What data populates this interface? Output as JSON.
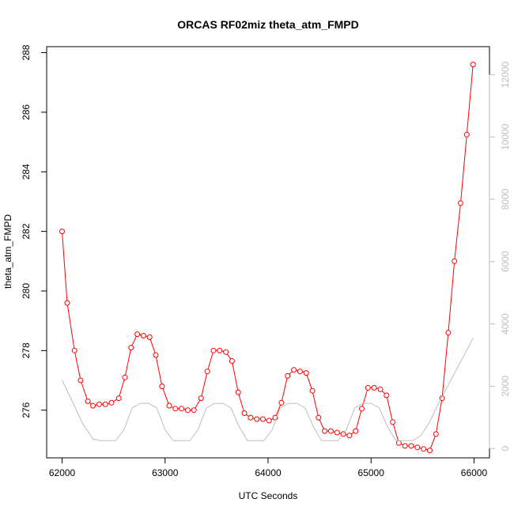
{
  "chart_data": {
    "type": "line",
    "title": "ORCAS RF02miz theta_atm_FMPD",
    "xlabel": "UTC Seconds",
    "ylabel": "theta_atm_FMPD",
    "xlim": [
      61850,
      66150
    ],
    "ylim": [
      274.4,
      288.2
    ],
    "y2lim": [
      -300,
      12900
    ],
    "xticks": [
      62000,
      63000,
      64000,
      65000,
      66000
    ],
    "yticks": [
      276,
      278,
      280,
      282,
      284,
      286,
      288
    ],
    "y2ticks": [
      0,
      2000,
      4000,
      6000,
      8000,
      10000,
      12000
    ],
    "colors": {
      "primary": "#ff0000",
      "secondary": "#bebebe"
    },
    "series": [
      {
        "axis": "left",
        "style": "line-points",
        "x": [
          62000,
          62050,
          62120,
          62180,
          62250,
          62300,
          62360,
          62420,
          62480,
          62550,
          62610,
          62670,
          62730,
          62790,
          62850,
          62910,
          62970,
          63040,
          63100,
          63160,
          63220,
          63280,
          63350,
          63410,
          63470,
          63530,
          63590,
          63650,
          63710,
          63770,
          63830,
          63890,
          63950,
          64010,
          64070,
          64130,
          64190,
          64250,
          64310,
          64370,
          64430,
          64490,
          64550,
          64610,
          64670,
          64730,
          64790,
          64850,
          64910,
          64970,
          65030,
          65090,
          65150,
          65210,
          65270,
          65330,
          65390,
          65450,
          65510,
          65570,
          65630,
          65690,
          65750,
          65810,
          65870,
          65930,
          65990
        ],
        "y": [
          282.0,
          279.6,
          278.0,
          277.0,
          276.3,
          276.15,
          276.2,
          276.2,
          276.25,
          276.4,
          277.1,
          278.1,
          278.55,
          278.5,
          278.45,
          277.85,
          276.8,
          276.15,
          276.05,
          276.05,
          276.0,
          276.0,
          276.4,
          277.3,
          278.0,
          278.0,
          277.95,
          277.65,
          276.6,
          275.9,
          275.75,
          275.7,
          275.7,
          275.65,
          275.75,
          276.25,
          277.15,
          277.35,
          277.3,
          277.25,
          276.65,
          275.75,
          275.3,
          275.3,
          275.25,
          275.2,
          275.15,
          275.3,
          276.05,
          276.75,
          276.75,
          276.7,
          276.5,
          275.6,
          274.9,
          274.8,
          274.8,
          274.75,
          274.7,
          274.65,
          275.2,
          276.4,
          278.6,
          281.0,
          282.95,
          285.25,
          287.6
        ]
      },
      {
        "axis": "right",
        "style": "line",
        "x": [
          62000,
          62100,
          62200,
          62300,
          62380,
          62450,
          62520,
          62600,
          62680,
          62760,
          62840,
          62920,
          63000,
          63080,
          63160,
          63240,
          63320,
          63400,
          63480,
          63560,
          63640,
          63720,
          63800,
          63880,
          63960,
          64040,
          64120,
          64200,
          64280,
          64360,
          64440,
          64520,
          64600,
          64680,
          64760,
          64840,
          64920,
          65000,
          65080,
          65160,
          65240,
          65320,
          65400,
          65480,
          65560,
          65640,
          65720,
          65800,
          65880,
          65960,
          65990
        ],
        "y": [
          2200,
          1500,
          800,
          300,
          250,
          250,
          250,
          600,
          1300,
          1450,
          1450,
          1300,
          600,
          250,
          250,
          250,
          600,
          1300,
          1450,
          1450,
          1300,
          700,
          250,
          250,
          250,
          600,
          1300,
          1450,
          1450,
          1300,
          700,
          250,
          250,
          250,
          600,
          1300,
          1450,
          1450,
          1300,
          700,
          250,
          250,
          250,
          400,
          800,
          1350,
          1850,
          2350,
          2850,
          3350,
          3550
        ]
      }
    ]
  }
}
